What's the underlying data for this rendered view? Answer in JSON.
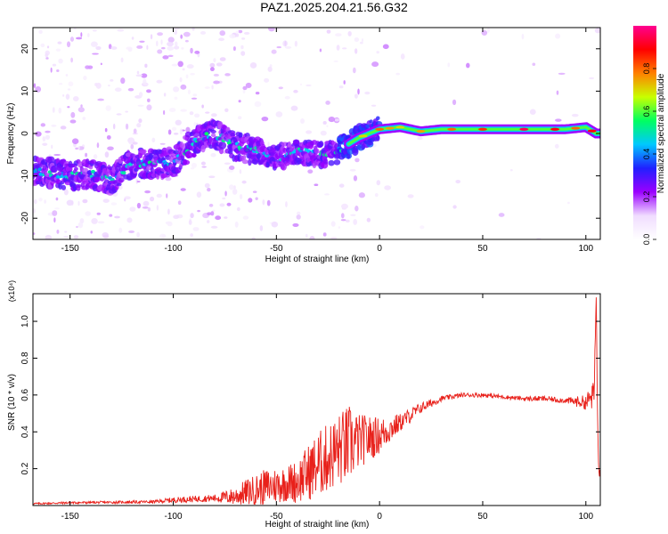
{
  "title": "PAZ1.2025.204.21.56.G32",
  "chart_data": [
    {
      "type": "heatmap",
      "title": "PAZ1.2025.204.21.56.G32",
      "xlabel": "Height of straight line (km)",
      "ylabel": "Frequency (Hz)",
      "xlim": [
        -168,
        107
      ],
      "ylim": [
        -25,
        25
      ],
      "x_ticks": [
        -150,
        -100,
        -50,
        0,
        50,
        100
      ],
      "y_ticks": [
        20,
        10,
        0,
        -10,
        -20
      ],
      "colorbar": {
        "label": "Normalized spectral amplitude",
        "range": [
          0.0,
          1.0
        ],
        "ticks": [
          "0.0",
          "0.2",
          "0.4",
          "0.6",
          "0.8"
        ],
        "colors": [
          "#ffffff",
          "#f0dcff",
          "#9b00ff",
          "#2020ff",
          "#00c8ff",
          "#00ff60",
          "#c8ff00",
          "#ff8000",
          "#ff0000",
          "#ff0090"
        ]
      },
      "ridge": {
        "x": [
          -165,
          -150,
          -140,
          -130,
          -120,
          -110,
          -100,
          -90,
          -80,
          -70,
          -60,
          -50,
          -40,
          -30,
          -20,
          -10,
          0,
          10,
          20,
          30,
          50,
          70,
          90,
          100,
          105
        ],
        "y": [
          -9,
          -10,
          -9.5,
          -11,
          -7,
          -7,
          -7,
          -2,
          0,
          -3,
          -4,
          -6,
          -4,
          -5,
          -4,
          -1,
          1,
          1.5,
          0.5,
          1,
          1,
          1,
          1,
          1.5,
          0
        ]
      }
    },
    {
      "type": "line",
      "xlabel": "Height of straight line (km)",
      "ylabel": "SNR (10 * v/v)",
      "y_multiplier": "(x10⁴)",
      "xlim": [
        -168,
        107
      ],
      "ylim": [
        0.0,
        1.15
      ],
      "x_ticks": [
        -150,
        -100,
        -50,
        0,
        50,
        100
      ],
      "y_ticks": [
        "0.2",
        "0.4",
        "0.6",
        "0.8",
        "1.0"
      ],
      "color": "#e8201a",
      "series_envelope": {
        "x": [
          -168,
          -150,
          -110,
          -100,
          -80,
          -70,
          -65,
          -55,
          -45,
          -40,
          -30,
          -20,
          -15,
          -10,
          0,
          10,
          20,
          30,
          40,
          50,
          60,
          70,
          80,
          90,
          100,
          104,
          105,
          106,
          107
        ],
        "mean": [
          0.01,
          0.015,
          0.02,
          0.03,
          0.04,
          0.05,
          0.07,
          0.1,
          0.12,
          0.13,
          0.22,
          0.3,
          0.33,
          0.35,
          0.38,
          0.45,
          0.53,
          0.58,
          0.6,
          0.6,
          0.59,
          0.58,
          0.58,
          0.57,
          0.56,
          0.6,
          1.15,
          0.2,
          0.25
        ],
        "amplitude": [
          0.005,
          0.006,
          0.008,
          0.015,
          0.02,
          0.05,
          0.07,
          0.1,
          0.1,
          0.12,
          0.18,
          0.2,
          0.22,
          0.15,
          0.1,
          0.05,
          0.03,
          0.015,
          0.012,
          0.012,
          0.012,
          0.012,
          0.015,
          0.015,
          0.04,
          0.08,
          0.0,
          0.1,
          0.08
        ]
      }
    }
  ]
}
